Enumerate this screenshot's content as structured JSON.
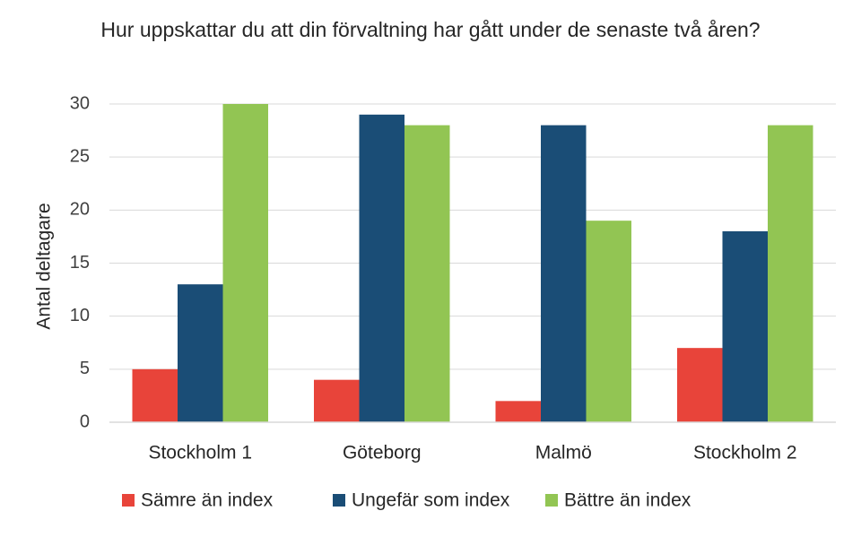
{
  "chart_data": {
    "type": "bar",
    "title": "Hur uppskattar du att din förvaltning har gått under de senaste två åren?",
    "xlabel": "",
    "ylabel": "Antal deltagare",
    "ylim": [
      0,
      30
    ],
    "yticks": [
      0,
      5,
      10,
      15,
      20,
      25,
      30
    ],
    "grid": true,
    "legend_position": "bottom",
    "categories": [
      "Stockholm 1",
      "Göteborg",
      "Malmö",
      "Stockholm 2"
    ],
    "series": [
      {
        "name": "Sämre än index",
        "color": "#e8443a",
        "values": [
          5,
          4,
          2,
          7
        ]
      },
      {
        "name": "Ungefär som index",
        "color": "#1a4d76",
        "values": [
          13,
          29,
          28,
          18
        ]
      },
      {
        "name": "Bättre än index",
        "color": "#92c553",
        "values": [
          30,
          28,
          19,
          28
        ]
      }
    ]
  }
}
